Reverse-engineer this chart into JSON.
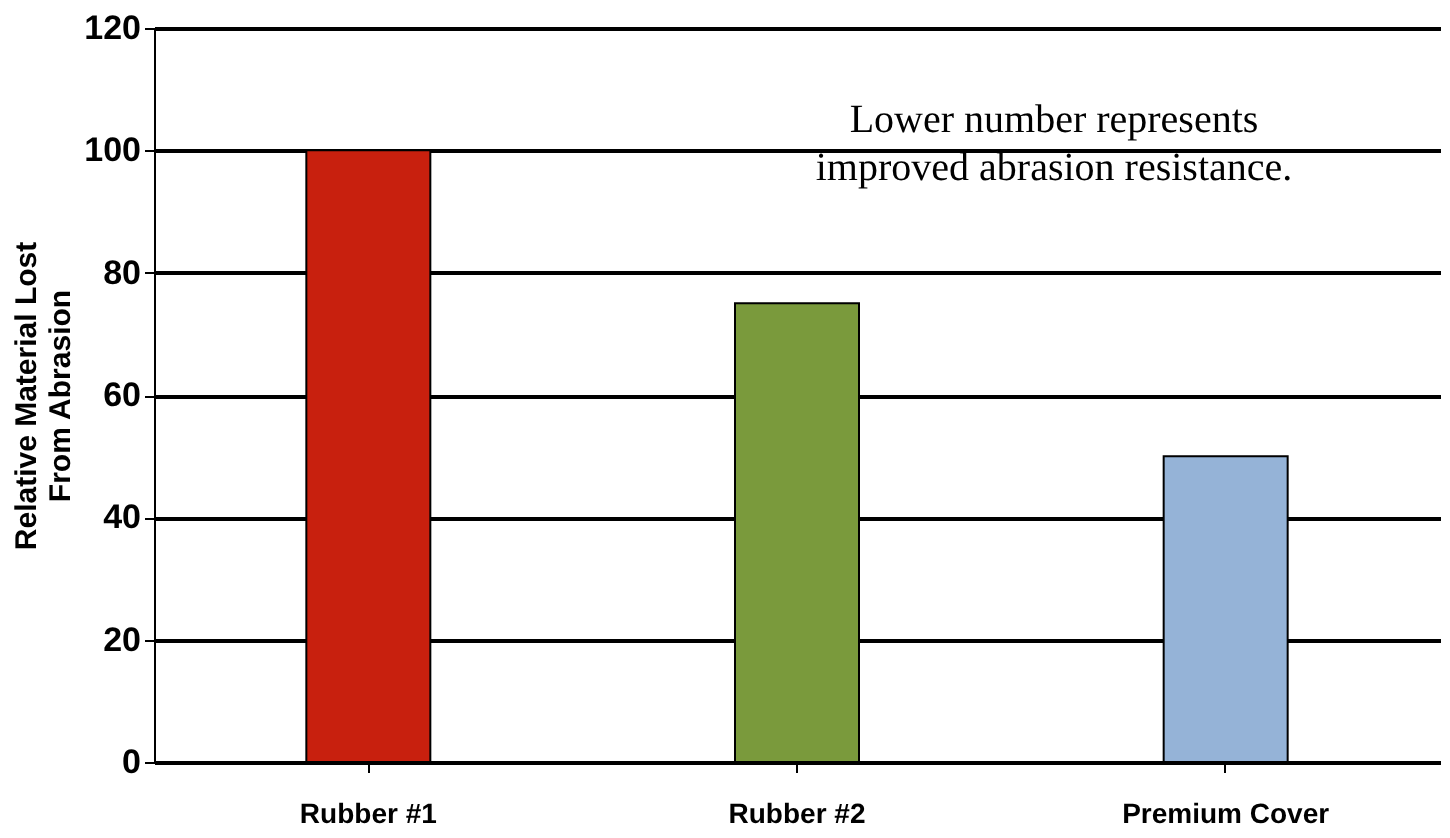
{
  "chart_data": {
    "type": "bar",
    "ylabel": "Relative Material Lost\nFrom Abrasion",
    "categories": [
      "Rubber #1",
      "Rubber #2",
      "Premium Cover"
    ],
    "values": [
      100,
      75,
      50
    ],
    "colors": [
      "#c8200e",
      "#7a9a3c",
      "#95b3d7"
    ],
    "ylim": [
      0,
      120
    ],
    "yticks": [
      0,
      20,
      40,
      60,
      80,
      100,
      120
    ],
    "grid": "y",
    "legend": false,
    "annotations": [
      "Lower number represents\nimproved abrasion resistance."
    ]
  }
}
